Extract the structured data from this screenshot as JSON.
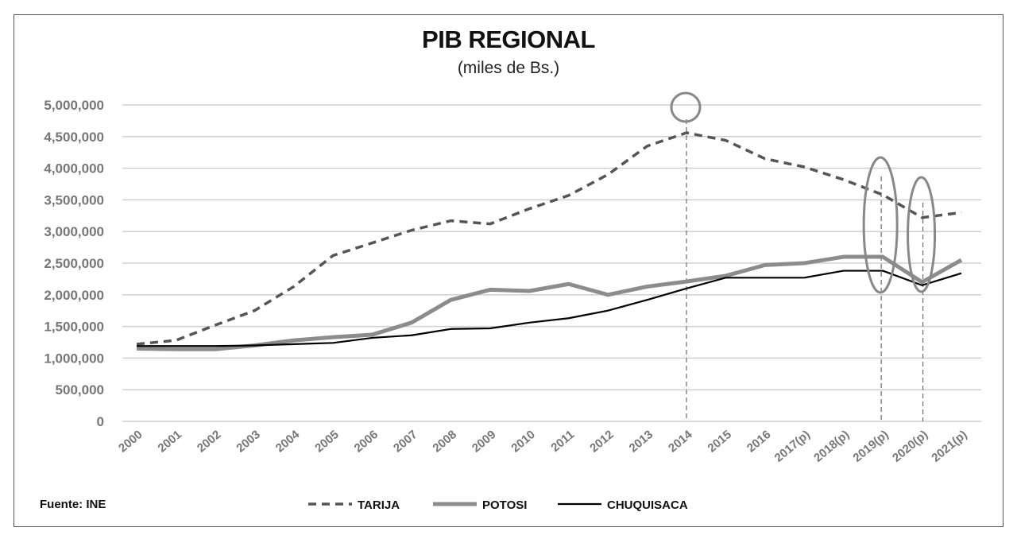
{
  "chart_data": {
    "type": "line",
    "title": "PIB REGIONAL",
    "subtitle": "(miles de Bs.)",
    "source": "Fuente: INE",
    "xlabel": "",
    "ylabel": "",
    "ylim": [
      0,
      5000000
    ],
    "yticks": [
      0,
      500000,
      1000000,
      1500000,
      2000000,
      2500000,
      3000000,
      3500000,
      4000000,
      4500000,
      5000000
    ],
    "ytick_labels": [
      "0",
      "500,000",
      "1,000,000",
      "1,500,000",
      "2,000,000",
      "2,500,000",
      "3,000,000",
      "3,500,000",
      "4,000,000",
      "4,500,000",
      "5,000,000"
    ],
    "grid": true,
    "legend_position": "bottom",
    "categories": [
      "2000",
      "2001",
      "2002",
      "2003",
      "2004",
      "2005",
      "2006",
      "2007",
      "2008",
      "2009",
      "2010",
      "2011",
      "2012",
      "2013",
      "2014",
      "2015",
      "2016",
      "2017(p)",
      "2018(p)",
      "2019(p)",
      "2020(p)",
      "2021(p)"
    ],
    "series": [
      {
        "name": "TARIJA",
        "color": "#555555",
        "style": "dashed",
        "values": [
          1220000,
          1280000,
          1520000,
          1750000,
          2130000,
          2620000,
          2820000,
          3020000,
          3170000,
          3120000,
          3360000,
          3570000,
          3900000,
          4350000,
          4560000,
          4440000,
          4150000,
          4020000,
          3820000,
          3580000,
          3220000,
          3300000
        ]
      },
      {
        "name": "POTOSI",
        "color": "#8c8c8c",
        "style": "thick",
        "values": [
          1150000,
          1140000,
          1140000,
          1200000,
          1280000,
          1330000,
          1370000,
          1560000,
          1920000,
          2080000,
          2060000,
          2170000,
          2000000,
          2130000,
          2210000,
          2300000,
          2470000,
          2500000,
          2600000,
          2600000,
          2200000,
          2550000
        ]
      },
      {
        "name": "CHUQUISACA",
        "color": "#000000",
        "style": "solid",
        "values": [
          1190000,
          1190000,
          1190000,
          1200000,
          1220000,
          1240000,
          1320000,
          1360000,
          1460000,
          1470000,
          1560000,
          1630000,
          1750000,
          1920000,
          2100000,
          2270000,
          2270000,
          2270000,
          2380000,
          2380000,
          2150000,
          2340000
        ]
      }
    ],
    "annotations": [
      {
        "type": "circle",
        "category": "2014"
      },
      {
        "type": "ellipse",
        "category": "2019(p)"
      },
      {
        "type": "ellipse",
        "category": "2020(p)"
      }
    ]
  }
}
